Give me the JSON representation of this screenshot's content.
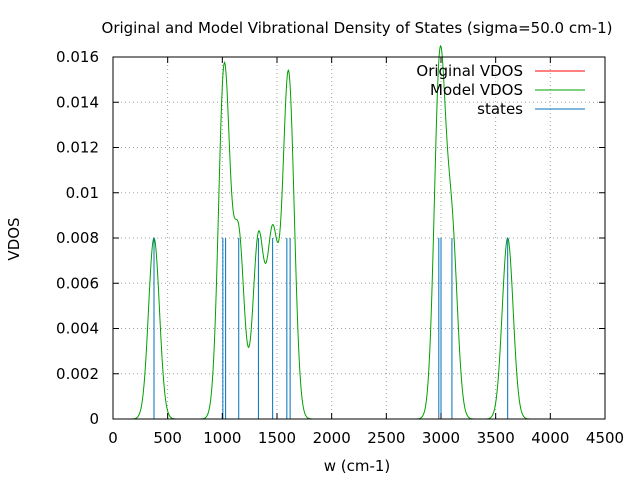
{
  "chart_data": {
    "type": "line",
    "title": "Original and Model Vibrational Density of States (sigma=50.0 cm-1)",
    "xlabel": "w (cm-1)",
    "ylabel": "VDOS",
    "xlim": [
      0,
      4500
    ],
    "ylim": [
      0,
      0.016
    ],
    "grid": true,
    "legend_position": "top-right",
    "x_ticks": [
      0,
      500,
      1000,
      1500,
      2000,
      2500,
      3000,
      3500,
      4000,
      4500
    ],
    "x_tick_labels": [
      "0",
      "500",
      "1000",
      "1500",
      "2000",
      "2500",
      "3000",
      "3500",
      "4000",
      "4500"
    ],
    "y_ticks": [
      0,
      0.002,
      0.004,
      0.006,
      0.008,
      0.01,
      0.012,
      0.014,
      0.016
    ],
    "y_tick_labels": [
      "0",
      "0.002",
      "0.004",
      "0.006",
      "0.008",
      "0.01",
      "0.012",
      "0.014",
      "0.016"
    ],
    "gaussian_amplitude": 0.008,
    "series": [
      {
        "name": "Original VDOS",
        "color": "#ff0000",
        "style": "line",
        "x": [],
        "values": []
      },
      {
        "name": "Model VDOS",
        "color": "#00a000",
        "style": "line",
        "description_note": "",
        "modes": [
          375,
          1005,
          1030,
          1150,
          1330,
          1460,
          1590,
          1620,
          2980,
          3000,
          3100,
          3610
        ]
      },
      {
        "name": "states",
        "color": "#0072bd",
        "style": "impulse",
        "x": [
          375,
          1005,
          1030,
          1150,
          1330,
          1460,
          1590,
          1620,
          2980,
          3000,
          3100,
          3610
        ],
        "values": [
          0.008,
          0.008,
          0.008,
          0.008,
          0.008,
          0.008,
          0.008,
          0.008,
          0.008,
          0.008,
          0.008,
          0.008
        ]
      }
    ]
  }
}
